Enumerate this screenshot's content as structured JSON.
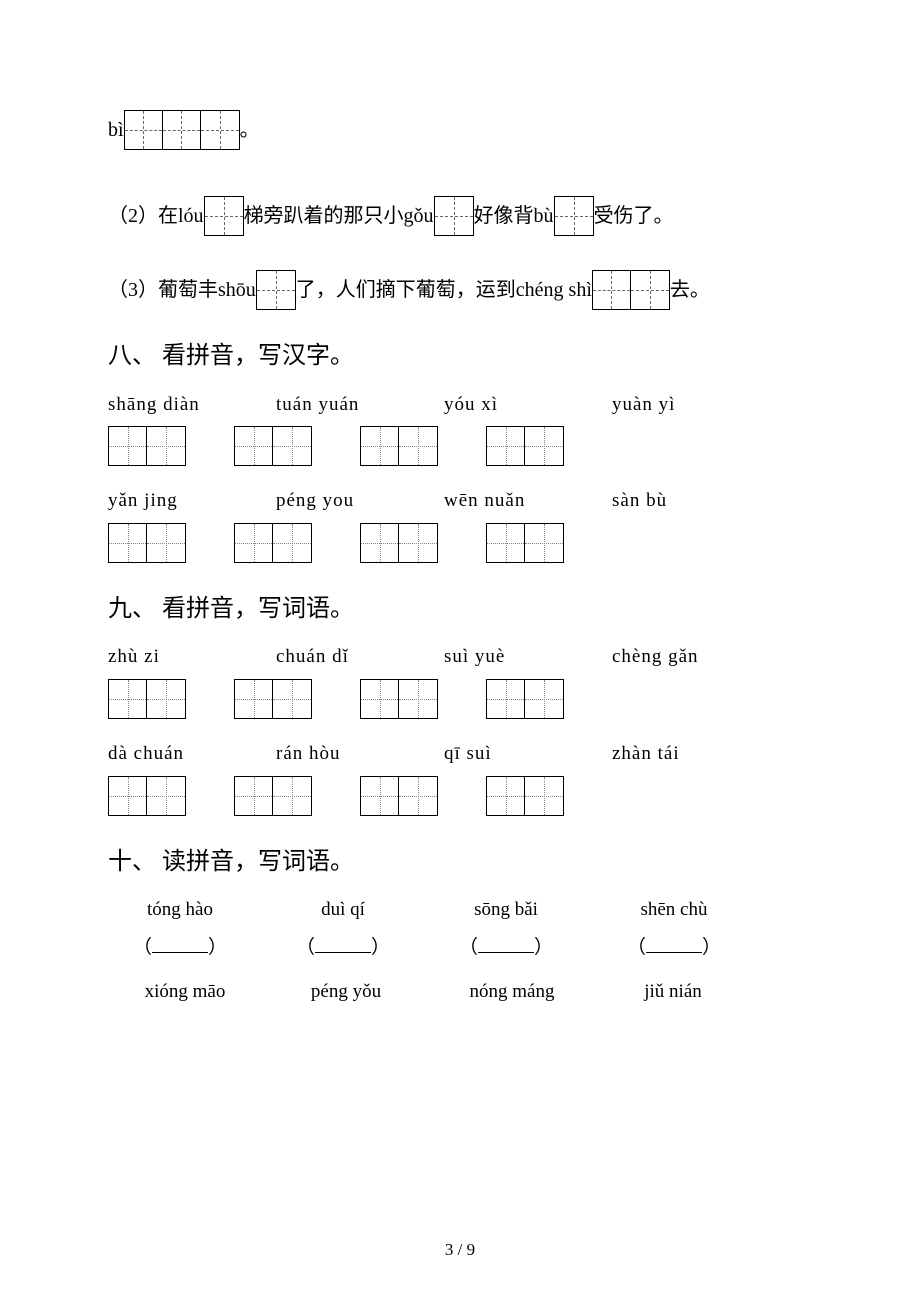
{
  "line1": {
    "prefix": "bì",
    "suffix": "。",
    "boxes": 3,
    "style": "dashed"
  },
  "line2": {
    "parts": [
      "（2）在lóu",
      "梯旁趴着的那只小gǒu",
      "好像背bù",
      "受伤了。"
    ],
    "boxCounts": [
      1,
      1,
      1
    ],
    "style": "dashed"
  },
  "line3": {
    "parts": [
      "（3）葡萄丰shōu",
      "了，人们摘下葡萄，运到chéng shì",
      "去。"
    ],
    "boxCounts": [
      1,
      2
    ],
    "style": "dashed"
  },
  "section8": {
    "title": "八、 看拼音，写汉字。",
    "row1_pinyin": [
      "shāng diàn",
      "tuán yuán",
      "yóu xì",
      "yuàn  yì"
    ],
    "row2_pinyin": [
      "yǎn  jing",
      "péng  you",
      "wēn nuǎn",
      "sàn   bù"
    ],
    "boxesPer": 2,
    "style": "dotted"
  },
  "section9": {
    "title": "九、 看拼音，写词语。",
    "row1_pinyin": [
      "zhù   zi",
      "chuán dǐ",
      "suì  yuè",
      "chèng gǎn"
    ],
    "row2_pinyin": [
      "dà  chuán",
      "rán  hòu",
      "qī   suì",
      "zhàn  tái"
    ],
    "boxesPer": 2,
    "style": "dotted"
  },
  "section10": {
    "title": "十、 读拼音，写词语。",
    "row1_pinyin": [
      "tóng hào",
      "duì qí",
      "sōng bǎi",
      "shēn chù"
    ],
    "row2_pinyin": [
      "xióng māo",
      "péng yǒu",
      "nóng máng",
      "jiǔ nián"
    ]
  },
  "footer": "3 / 9"
}
